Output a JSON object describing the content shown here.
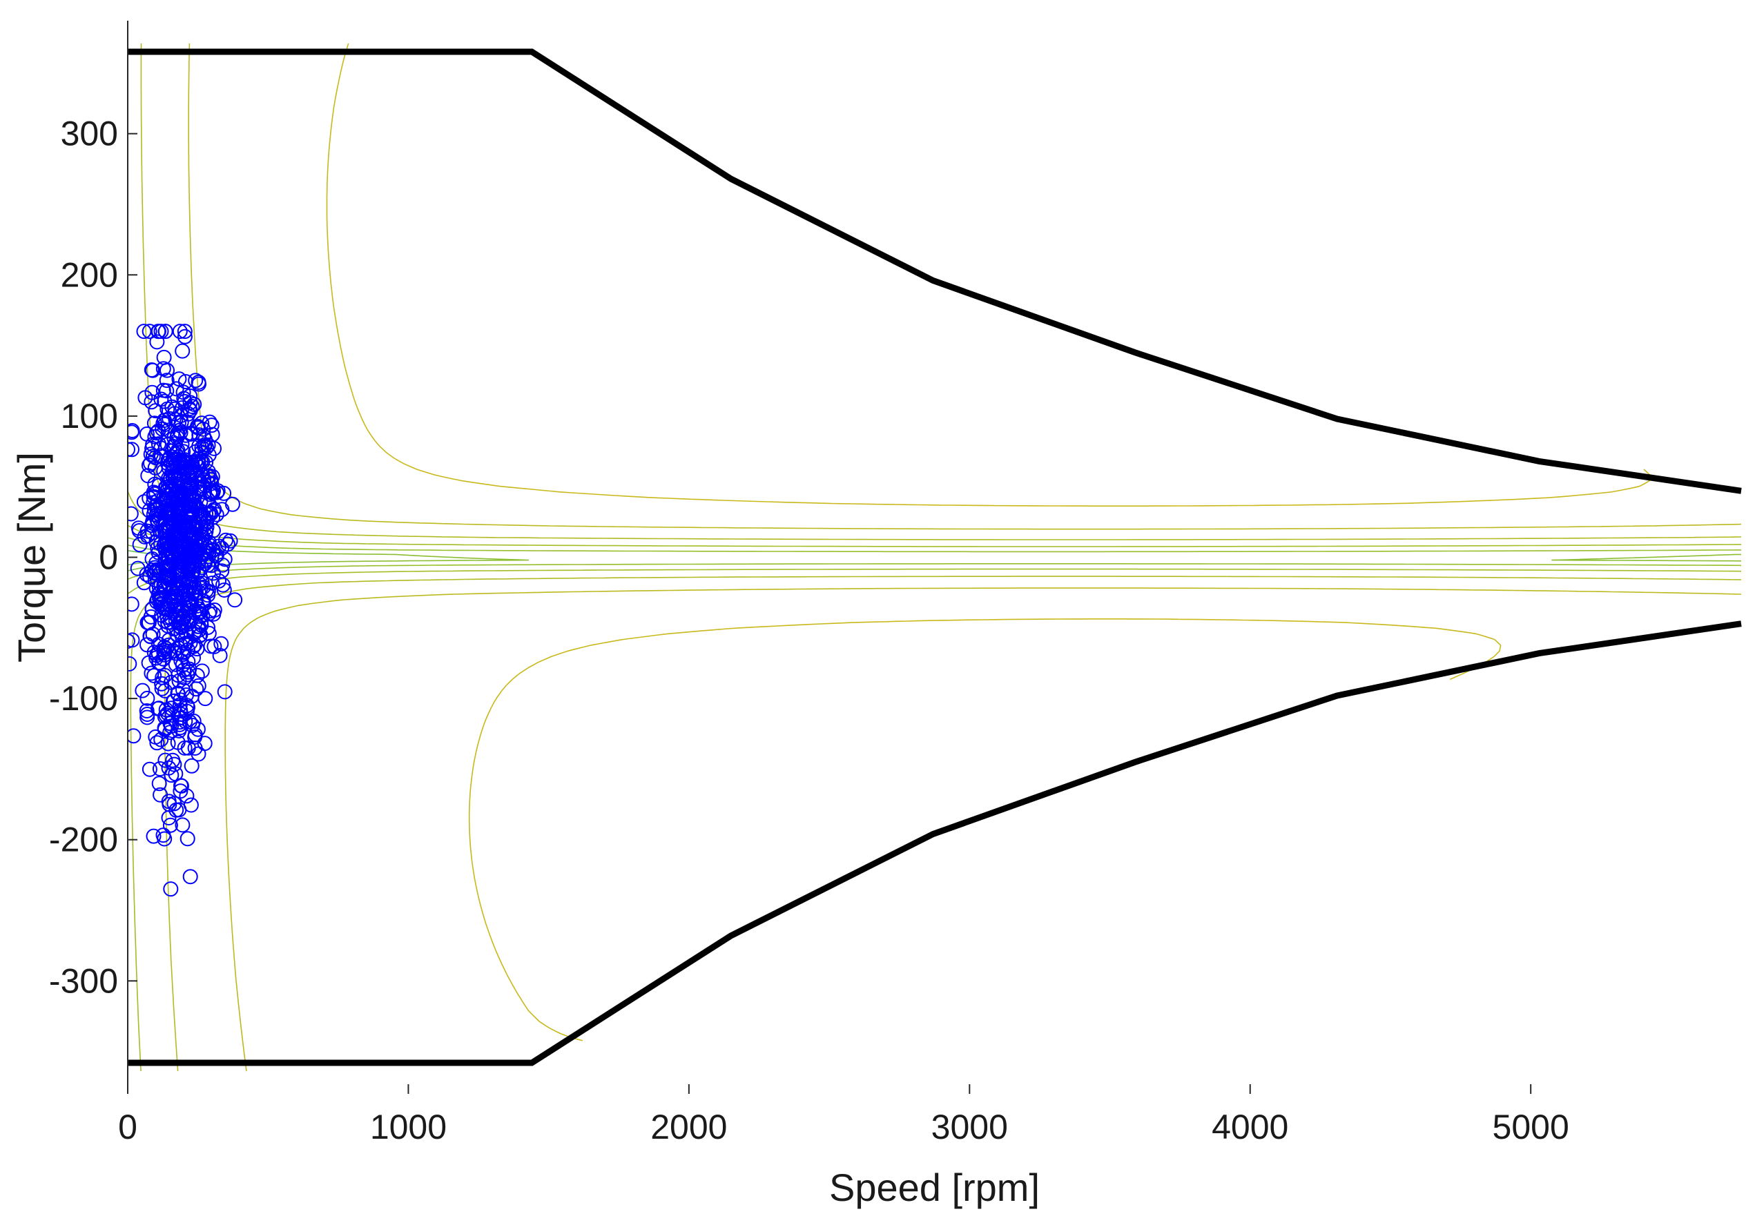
{
  "chart_data": {
    "type": "contour",
    "xlabel": "Speed [rpm]",
    "ylabel": "Torque [Nm]",
    "xlim": [
      0,
      5750
    ],
    "ylim": [
      -380,
      380
    ],
    "xticks": [
      0,
      1000,
      2000,
      3000,
      4000,
      5000
    ],
    "yticks": [
      -300,
      -200,
      -100,
      0,
      100,
      200,
      300
    ],
    "xtick_labels": [
      "0",
      "1000",
      "2000",
      "3000",
      "4000",
      "5000"
    ],
    "ytick_labels": [
      "-300",
      "-200",
      "-100",
      "0",
      "100",
      "200",
      "300"
    ],
    "grid": false,
    "legend": "none",
    "colormap": [
      "#3a1fff",
      "#1560ee",
      "#0a9ed8",
      "#14bdb6",
      "#3fc17e",
      "#8ebf2e",
      "#c8b81a"
    ],
    "envelope_color": "#000000",
    "marker_color": "#0000ff",
    "torque_envelope": {
      "speed": [
        0,
        1440,
        2150,
        2870,
        3590,
        4310,
        5030,
        5750
      ],
      "max_torque": [
        358,
        358,
        268,
        196,
        145,
        98,
        68,
        47
      ],
      "min_torque": [
        -358,
        -358,
        -268,
        -196,
        -145,
        -98,
        -68,
        -47
      ]
    },
    "operating_points": {
      "marker": "circle",
      "speed_range": [
        0,
        400
      ],
      "torque_range": [
        -253,
        160
      ],
      "count_estimate": 900,
      "dense_core_speed": [
        80,
        380
      ],
      "dense_core_torque": [
        -60,
        90
      ]
    },
    "contour_levels": 30
  }
}
